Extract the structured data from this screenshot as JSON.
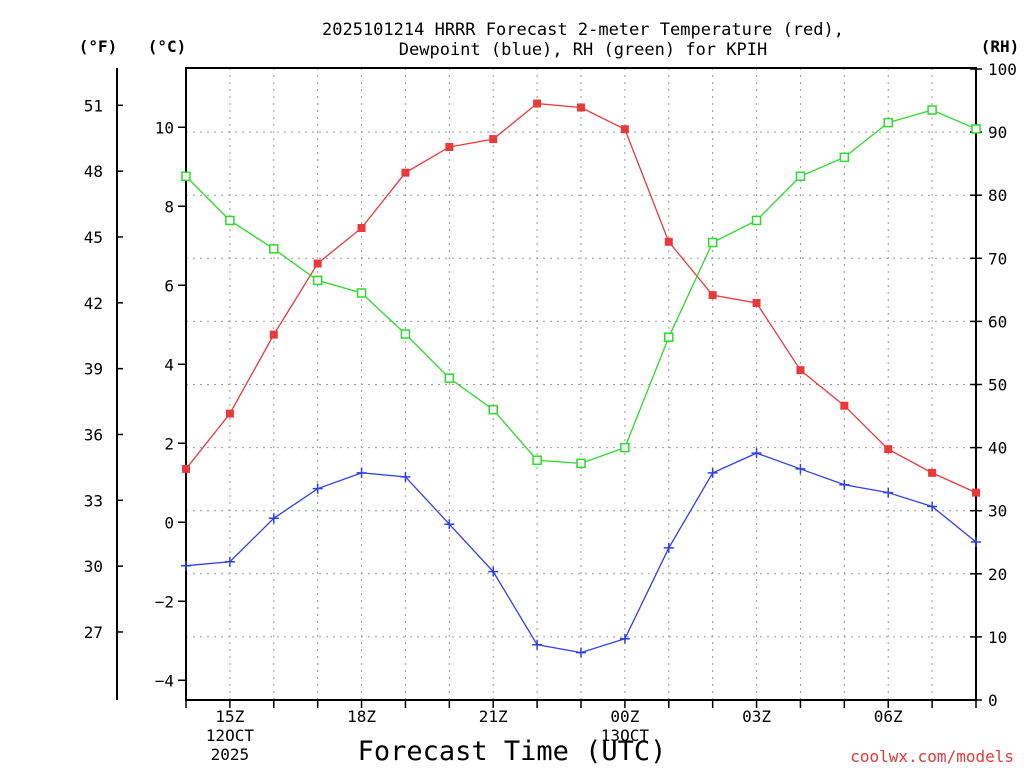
{
  "chart_data": {
    "type": "line",
    "title_line1": "2025101214 HRRR Forecast 2-meter Temperature (red),",
    "title_line2": "Dewpoint (blue), RH (green) for KPIH",
    "xlabel": "Forecast Time (UTC)",
    "credit": "coolwx.com/models",
    "unit_f": "(°F)",
    "unit_c": "(°C)",
    "unit_rh": "(RH)",
    "x_hours": [
      14,
      15,
      16,
      17,
      18,
      19,
      20,
      21,
      22,
      23,
      24,
      25,
      26,
      27,
      28,
      29,
      30,
      31,
      32
    ],
    "xlim_hours": [
      14,
      32
    ],
    "celsius_axis": {
      "ylim": [
        -4.5,
        11.5
      ],
      "ticks": [
        -4,
        -2,
        0,
        2,
        4,
        6,
        8,
        10
      ],
      "labels": [
        "−4",
        "−2",
        "0",
        "2",
        "4",
        "6",
        "8",
        "10"
      ]
    },
    "fahrenheit_axis": {
      "ylim": [
        23.9,
        52.7
      ],
      "ticks": [
        27,
        30,
        33,
        36,
        39,
        42,
        45,
        48,
        51
      ],
      "labels": [
        "27",
        "30",
        "33",
        "36",
        "39",
        "42",
        "45",
        "48",
        "51"
      ]
    },
    "rh_axis": {
      "ylim": [
        0,
        100
      ],
      "ticks": [
        0,
        10,
        20,
        30,
        40,
        50,
        60,
        70,
        80,
        90,
        100
      ],
      "labels": [
        "0",
        "10",
        "20",
        "30",
        "40",
        "50",
        "60",
        "70",
        "80",
        "90",
        "100"
      ]
    },
    "x_ticks": [
      {
        "hour": 15,
        "line1": "15Z",
        "line2": "12OCT",
        "line3": "2025"
      },
      {
        "hour": 18,
        "line1": "18Z",
        "line2": "",
        "line3": ""
      },
      {
        "hour": 21,
        "line1": "21Z",
        "line2": "",
        "line3": ""
      },
      {
        "hour": 24,
        "line1": "00Z",
        "line2": "13OCT",
        "line3": ""
      },
      {
        "hour": 27,
        "line1": "03Z",
        "line2": "",
        "line3": ""
      },
      {
        "hour": 30,
        "line1": "06Z",
        "line2": "",
        "line3": ""
      }
    ],
    "series": [
      {
        "name": "Temperature",
        "axis": "celsius",
        "color": "#e83a3a",
        "marker": "filled-square",
        "values": [
          1.35,
          2.75,
          4.75,
          6.55,
          7.45,
          8.85,
          9.5,
          9.7,
          10.6,
          10.5,
          9.95,
          7.1,
          5.75,
          5.55,
          3.85,
          2.95,
          1.85,
          1.25,
          0.75
        ]
      },
      {
        "name": "Dewpoint",
        "axis": "celsius",
        "color": "#2f3fe8",
        "marker": "plus",
        "values": [
          -1.1,
          -1.0,
          0.1,
          0.85,
          1.25,
          1.15,
          -0.05,
          -1.25,
          -3.1,
          -3.3,
          -2.95,
          -0.65,
          1.25,
          1.75,
          1.35,
          0.95,
          0.75,
          0.4,
          -0.5
        ]
      },
      {
        "name": "RH",
        "axis": "rh",
        "color": "#2ed82e",
        "marker": "open-square",
        "values": [
          83,
          76,
          71.5,
          66.5,
          64.5,
          58,
          51,
          46,
          38,
          37.5,
          40,
          57.5,
          72.5,
          76,
          83,
          86,
          91.5,
          93.5,
          90.5
        ]
      }
    ]
  }
}
